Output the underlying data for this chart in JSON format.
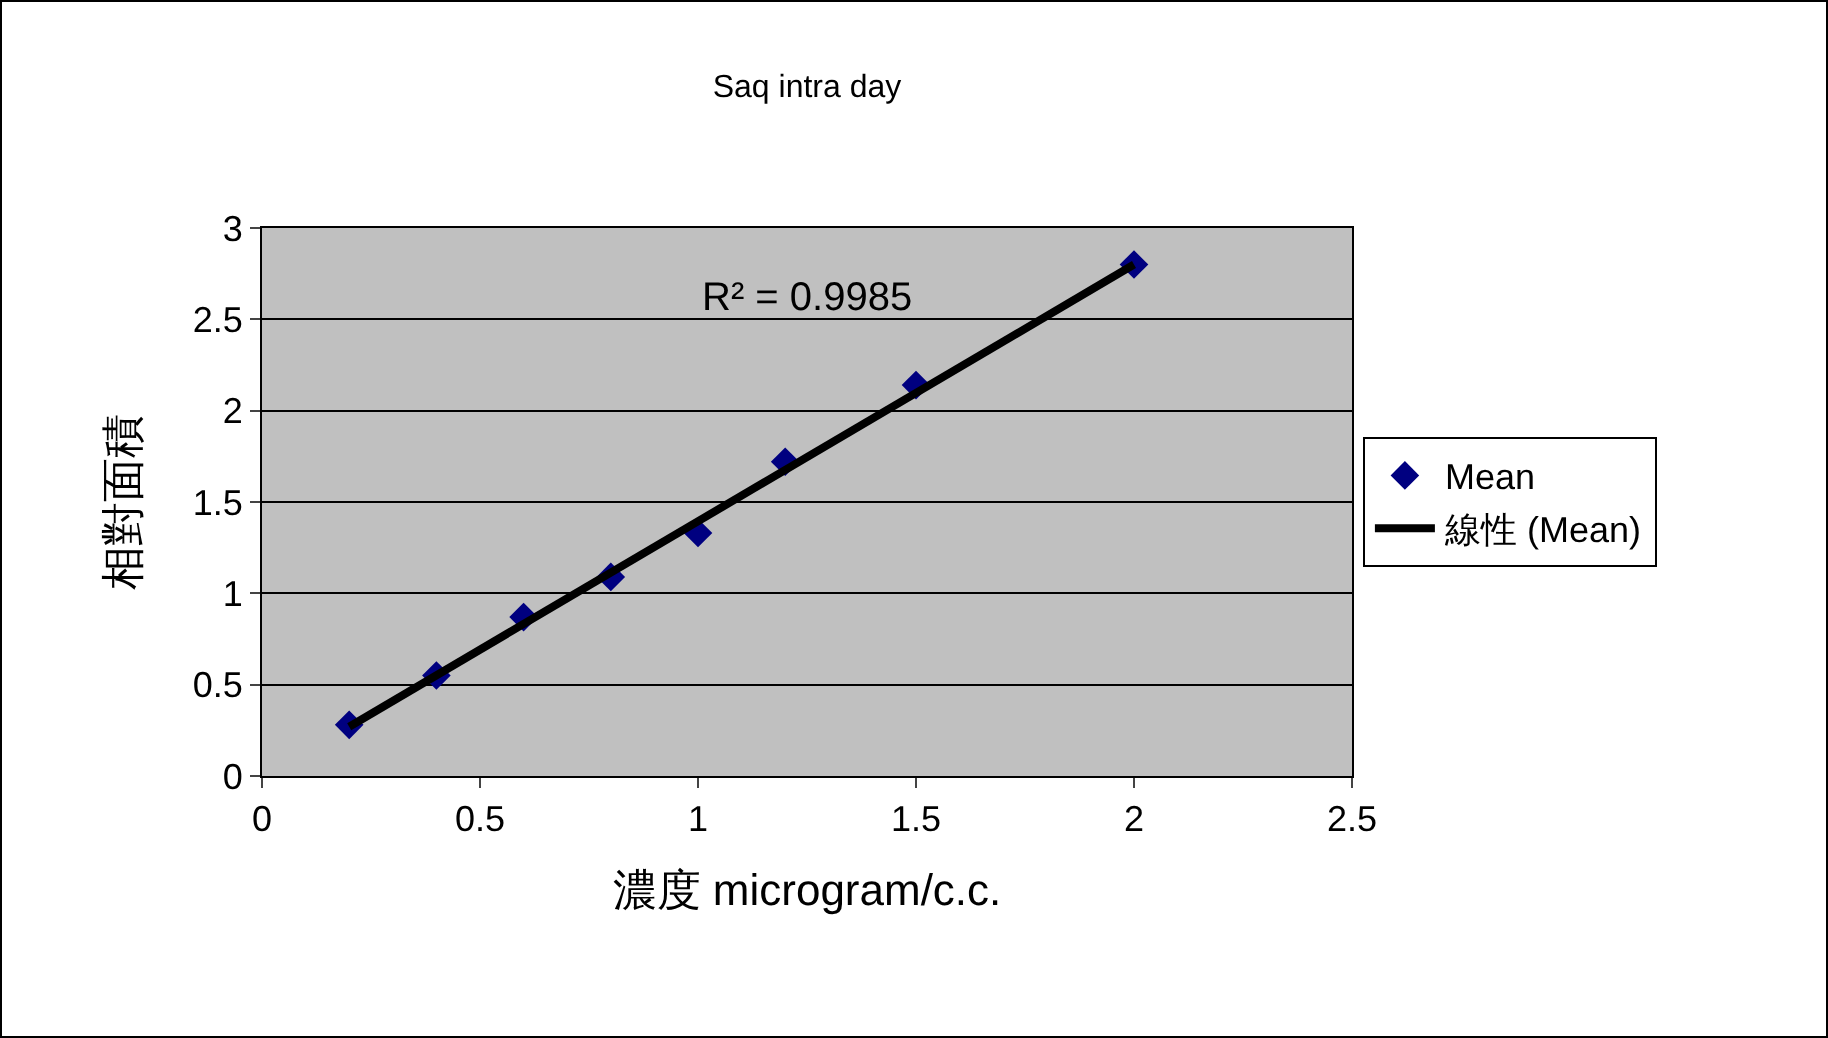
{
  "chart_data": {
    "type": "scatter",
    "title": "Saq intra day",
    "xlabel": "濃度 microgram/c.c.",
    "ylabel": "相對面積",
    "x": [
      0.2,
      0.4,
      0.6,
      0.8,
      1.0,
      1.2,
      1.5,
      2.0
    ],
    "series": [
      {
        "name": "Mean",
        "marker": "diamond",
        "color": "#000080",
        "values": [
          0.28,
          0.55,
          0.87,
          1.09,
          1.33,
          1.72,
          2.14,
          2.8
        ]
      },
      {
        "name": "線性 (Mean)",
        "type": "line",
        "marker": "none",
        "line_style": "solid",
        "color": "#000000",
        "x": [
          0.2,
          2.0
        ],
        "values": [
          0.27,
          2.8
        ]
      }
    ],
    "annotations": [
      "R² = 0.9985"
    ],
    "xlim": [
      0,
      2.5
    ],
    "xticks": [
      0,
      0.5,
      1,
      1.5,
      2,
      2.5
    ],
    "ylim": [
      0,
      3
    ],
    "yticks": [
      0,
      0.5,
      1,
      1.5,
      2,
      2.5,
      3
    ],
    "grid": "y",
    "legend": "right"
  }
}
